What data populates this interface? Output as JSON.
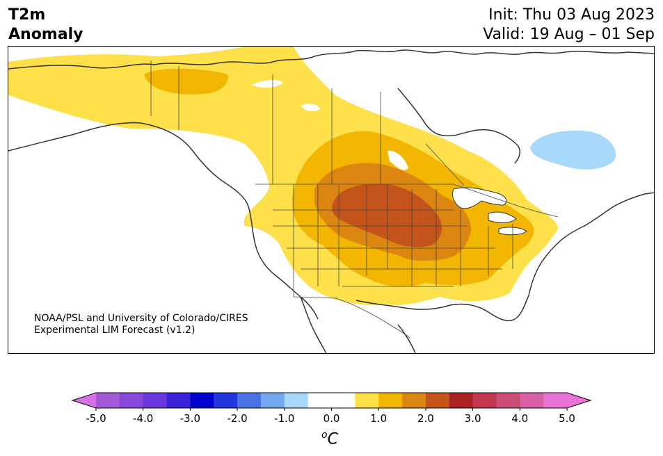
{
  "header": {
    "title_line1": "T2m",
    "title_line2": "Anomaly",
    "init": "Init: Thu 03 Aug 2023",
    "valid": "Valid: 19 Aug – 01 Sep"
  },
  "credit": {
    "line1": "NOAA/PSL and University of Colorado/CIRES",
    "line2": "Experimental LIM Forecast (v1.2)"
  },
  "colorbar": {
    "unit_sup": "o",
    "unit": "C",
    "tick_labels": [
      "-5.0",
      "-4.0",
      "-3.0",
      "-2.0",
      "-1.0",
      "0.0",
      "1.0",
      "2.0",
      "3.0",
      "4.0",
      "5.0"
    ],
    "bins": [
      {
        "range": "< -5.0",
        "color": "#d672e6"
      },
      {
        "range": "-5.0 to -4.5",
        "color": "#a25ad8"
      },
      {
        "range": "-4.5 to -4.0",
        "color": "#8848dc"
      },
      {
        "range": "-4.0 to -3.5",
        "color": "#6a38de"
      },
      {
        "range": "-3.5 to -3.0",
        "color": "#3a22d6"
      },
      {
        "range": "-3.0 to -2.5",
        "color": "#0000cc"
      },
      {
        "range": "-2.5 to -2.0",
        "color": "#2236de"
      },
      {
        "range": "-2.0 to -1.5",
        "color": "#4a72e4"
      },
      {
        "range": "-1.5 to -1.0",
        "color": "#74a8ee"
      },
      {
        "range": "-1.0 to -0.5",
        "color": "#a8d8fa"
      },
      {
        "range": "-0.5 to 0.0",
        "color": "#ffffff"
      },
      {
        "range": "0.0 to 0.5",
        "color": "#ffffff"
      },
      {
        "range": "0.5 to 1.0",
        "color": "#fee04a"
      },
      {
        "range": "1.0 to 1.5",
        "color": "#f2b600"
      },
      {
        "range": "1.5 to 2.0",
        "color": "#dc8612"
      },
      {
        "range": "2.0 to 2.5",
        "color": "#c5541a"
      },
      {
        "range": "2.5 to 3.0",
        "color": "#aa2222"
      },
      {
        "range": "3.0 to 3.5",
        "color": "#c23650"
      },
      {
        "range": "3.5 to 4.0",
        "color": "#cc4c78"
      },
      {
        "range": "4.0 to 4.5",
        "color": "#d860a4"
      },
      {
        "range": "4.5 to 5.0",
        "color": "#e872d6"
      },
      {
        "range": "> 5.0",
        "color": "#e872d6"
      }
    ]
  }
}
